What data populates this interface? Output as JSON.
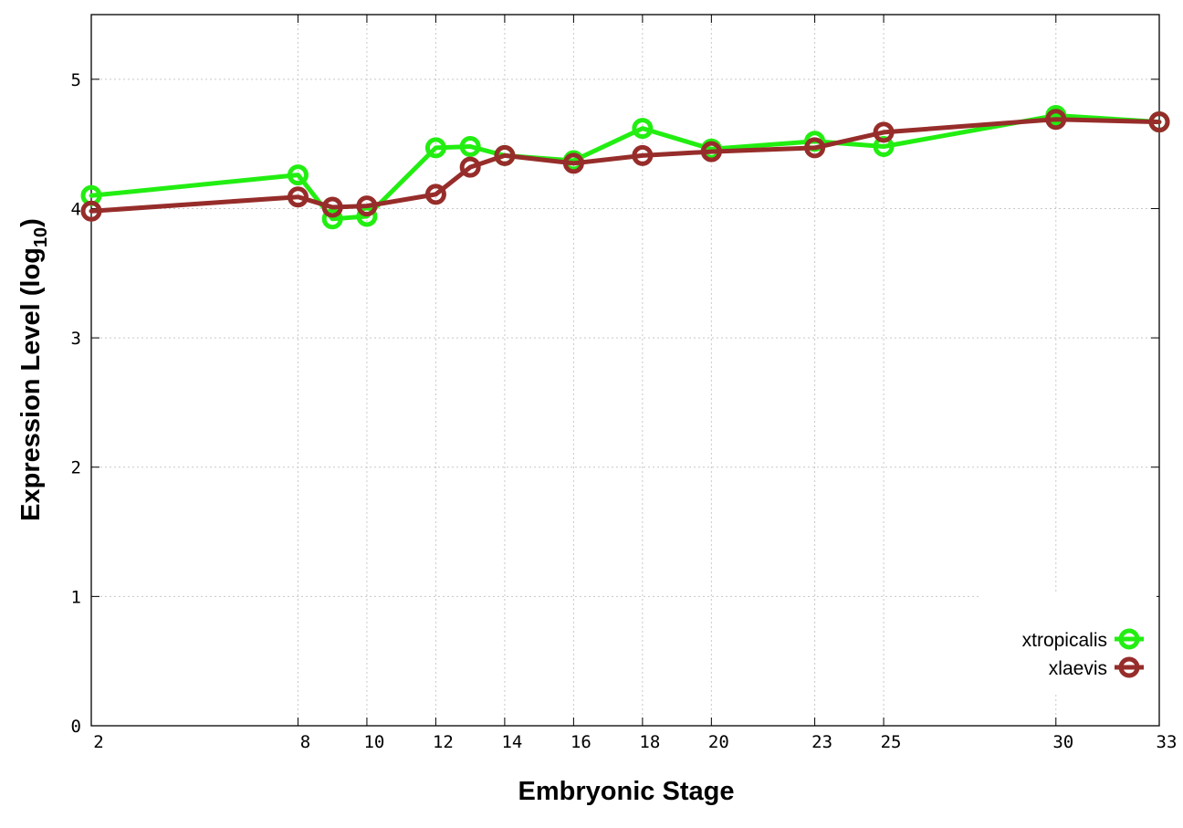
{
  "colors": {
    "xtropicalis": "#22ee11",
    "xlaevis": "#962d2a",
    "grid": "#c8c8c8",
    "axis": "#000000"
  },
  "chart_data": {
    "type": "line",
    "xlabel": "Embryonic Stage",
    "ylabel": "Expression Level (log",
    "ylabel_subscript": "10",
    "ylabel_suffix": ")",
    "categories": [
      "2",
      "8",
      "9",
      "10",
      "12",
      "13",
      "14",
      "16",
      "18",
      "20",
      "23",
      "25",
      "30",
      "33"
    ],
    "x_tick_labels": [
      "2",
      "8",
      "10",
      "12",
      "14",
      "16",
      "18",
      "20",
      "23",
      "25",
      "30",
      "33"
    ],
    "y_tick_labels": [
      "0",
      "1",
      "2",
      "3",
      "4",
      "5"
    ],
    "ylim": [
      0,
      5.5
    ],
    "grid": true,
    "legend_position": "bottom-right",
    "series": [
      {
        "name": "xtropicalis",
        "values": [
          4.1,
          4.26,
          3.92,
          3.94,
          4.47,
          4.48,
          4.41,
          4.37,
          4.62,
          4.46,
          4.52,
          4.48,
          4.72,
          4.67
        ]
      },
      {
        "name": "xlaevis",
        "values": [
          3.98,
          4.09,
          4.01,
          4.02,
          4.11,
          4.32,
          4.41,
          4.35,
          4.41,
          4.44,
          4.47,
          4.59,
          4.69,
          4.67
        ]
      }
    ]
  }
}
